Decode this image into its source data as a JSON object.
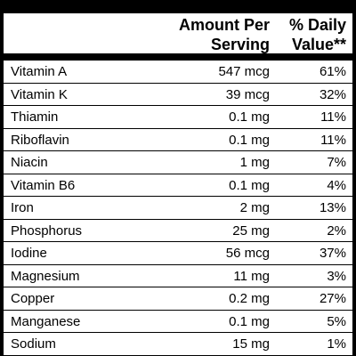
{
  "header": {
    "amount_line1": "Amount Per",
    "amount_line2": "Serving",
    "dv_line1": "% Daily",
    "dv_line2": "Value**"
  },
  "nutrients": [
    {
      "name": "Vitamin A",
      "amount": "547 mcg",
      "dv": "61%"
    },
    {
      "name": "Vitamin K",
      "amount": "39 mcg",
      "dv": "32%"
    },
    {
      "name": "Thiamin",
      "amount": "0.1 mg",
      "dv": "11%"
    },
    {
      "name": "Riboflavin",
      "amount": "0.1 mg",
      "dv": "11%"
    },
    {
      "name": "Niacin",
      "amount": "1 mg",
      "dv": "7%"
    },
    {
      "name": "Vitamin B6",
      "amount": "0.1 mg",
      "dv": "4%"
    },
    {
      "name": "Iron",
      "amount": "2 mg",
      "dv": "13%"
    },
    {
      "name": "Phosphorus",
      "amount": "25 mg",
      "dv": "2%"
    },
    {
      "name": "Iodine",
      "amount": "56 mcg",
      "dv": "37%"
    },
    {
      "name": "Magnesium",
      "amount": "11 mg",
      "dv": "3%"
    },
    {
      "name": "Copper",
      "amount": "0.2 mg",
      "dv": "27%"
    },
    {
      "name": "Manganese",
      "amount": "0.1 mg",
      "dv": "5%"
    },
    {
      "name": "Sodium",
      "amount": "15 mg",
      "dv": "1%"
    }
  ],
  "colors": {
    "text": "#000000",
    "background": "#ffffff"
  }
}
